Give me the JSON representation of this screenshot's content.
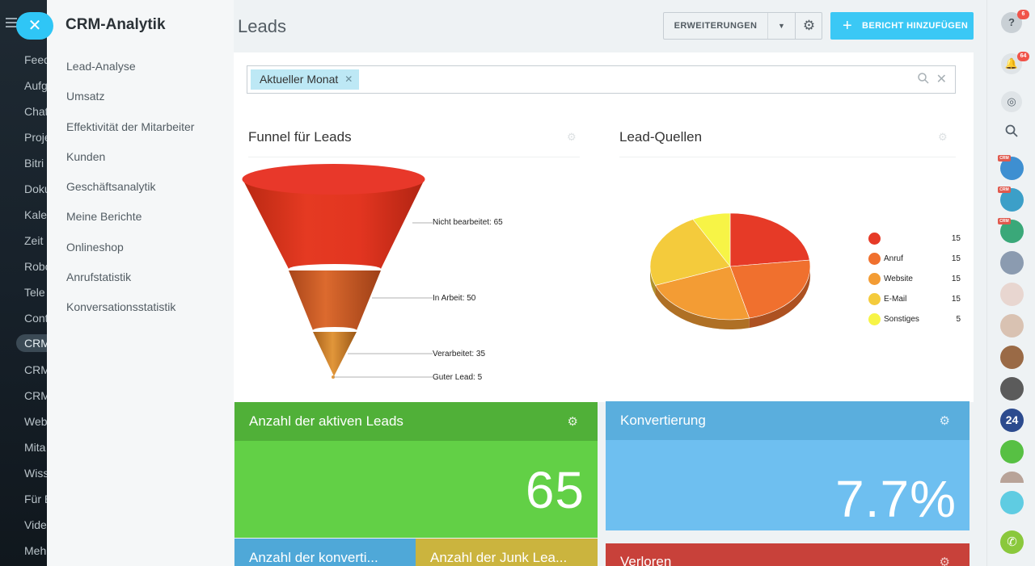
{
  "left_nav": {
    "items": [
      "Feed",
      "Aufg",
      "Chat",
      "Proje",
      "Bitri",
      "Doku",
      "Kale",
      "Zeit",
      "Robo",
      "Tele",
      "Cont",
      "CRM",
      "CRM",
      "CRM",
      "Web",
      "Mita",
      "Wiss",
      "Für E",
      "Vide",
      "Meh"
    ]
  },
  "sidebar": {
    "title": "CRM-Analytik",
    "items": [
      "Lead-Analyse",
      "Umsatz",
      "Effektivität der Mitarbeiter",
      "Kunden",
      "Geschäftsanalytik",
      "Meine Berichte",
      "Onlineshop",
      "Anrufstatistik",
      "Konversationsstatistik"
    ]
  },
  "header": {
    "title": "Leads",
    "extensions_label": "ERWEITERUNGEN",
    "add_report_label": "BERICHT HINZUFÜGEN"
  },
  "filter": {
    "chip_label": "Aktueller Monat"
  },
  "funnel_widget": {
    "title": "Funnel für Leads",
    "labels": [
      "Nicht bearbeitet: 65",
      "In Arbeit: 50",
      "Verarbeitet: 35",
      "Guter Lead: 5"
    ]
  },
  "sources_widget": {
    "title": "Lead-Quellen",
    "legend": [
      {
        "name": "",
        "value": "15",
        "color": "#e63a27"
      },
      {
        "name": "Anruf",
        "value": "15",
        "color": "#f0702e"
      },
      {
        "name": "Website",
        "value": "15",
        "color": "#f39c34"
      },
      {
        "name": "E-Mail",
        "value": "15",
        "color": "#f4cb3c"
      },
      {
        "name": "Sonstiges",
        "value": "5",
        "color": "#f7f446"
      }
    ]
  },
  "chart_data": [
    {
      "type": "bar",
      "categories": [
        "Nicht bearbeitet",
        "In Arbeit",
        "Verarbeitet",
        "Guter Lead"
      ],
      "values": [
        65,
        50,
        35,
        5
      ],
      "title": "Funnel für Leads"
    },
    {
      "type": "pie",
      "categories": [
        "",
        "Anruf",
        "Website",
        "E-Mail",
        "Sonstiges"
      ],
      "values": [
        15,
        15,
        15,
        15,
        5
      ],
      "title": "Lead-Quellen"
    }
  ],
  "tiles": {
    "active_leads": {
      "title": "Anzahl der aktiven Leads",
      "value": "65"
    },
    "conversion": {
      "title": "Konvertierung",
      "value": "7.7%"
    },
    "converted": {
      "title": "Anzahl der konverti..."
    },
    "junk": {
      "title": "Anzahl der Junk Lea..."
    },
    "lost": {
      "title": "Verloren"
    }
  },
  "right_bar": {
    "help_badge": "6",
    "notifications_badge": "64",
    "crm_tag": "CRM",
    "avatar_24": "24"
  },
  "colors": {
    "accent": "#3bc8f5",
    "green": "#62d046",
    "green_head": "#50b038",
    "blue_tile": "#6ebff0",
    "blue_head": "#5aaedd"
  }
}
